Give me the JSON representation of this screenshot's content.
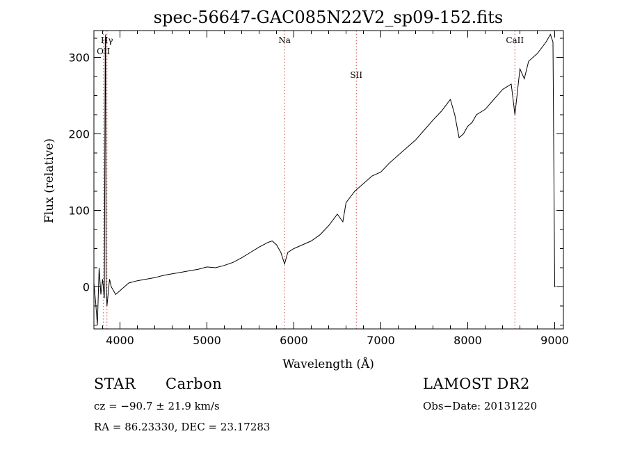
{
  "chart_data": {
    "type": "line",
    "title": "spec-56647-GAC085N22V2_sp09-152.fits",
    "xlabel": "Wavelength (Å)",
    "ylabel": "Flux (relative)",
    "xlim": [
      3700,
      9100
    ],
    "ylim": [
      -55,
      335
    ],
    "x_ticks": [
      4000,
      5000,
      6000,
      7000,
      8000,
      9000
    ],
    "y_ticks": [
      0,
      100,
      200,
      300
    ],
    "grid": false,
    "series": [
      {
        "x": [
          3700,
          3720,
          3740,
          3760,
          3780,
          3800,
          3820,
          3830,
          3835,
          3840,
          3850,
          3880,
          3900,
          3950,
          4000,
          4100,
          4200,
          4300,
          4400,
          4500,
          4600,
          4700,
          4800,
          4900,
          5000,
          5100,
          5200,
          5300,
          5400,
          5500,
          5600,
          5700,
          5750,
          5800,
          5850,
          5893,
          5930,
          6000,
          6100,
          6200,
          6300,
          6400,
          6500,
          6563,
          6600,
          6700,
          6800,
          6900,
          7000,
          7100,
          7200,
          7300,
          7400,
          7500,
          7600,
          7700,
          7800,
          7850,
          7900,
          7950,
          8000,
          8050,
          8100,
          8200,
          8300,
          8400,
          8500,
          8542,
          8600,
          8650,
          8700,
          8800,
          8900,
          8950,
          8980,
          9000,
          9010
        ],
        "y": [
          5,
          -20,
          -50,
          25,
          -10,
          10,
          -15,
          320,
          330,
          5,
          -25,
          10,
          0,
          -10,
          -5,
          5,
          8,
          10,
          12,
          15,
          17,
          19,
          21,
          23,
          26,
          25,
          28,
          32,
          38,
          45,
          52,
          58,
          60,
          55,
          45,
          30,
          45,
          50,
          55,
          60,
          68,
          80,
          95,
          85,
          110,
          125,
          135,
          145,
          150,
          162,
          172,
          182,
          192,
          205,
          218,
          230,
          245,
          225,
          195,
          200,
          210,
          215,
          225,
          232,
          245,
          258,
          265,
          225,
          285,
          272,
          295,
          305,
          320,
          330,
          320,
          0,
          0
        ]
      }
    ],
    "lines": [
      {
        "label": "Hγ",
        "x": 3850
      },
      {
        "label": "OII",
        "x": 3810
      },
      {
        "label": "Na",
        "x": 5893
      },
      {
        "label": "SII",
        "x": 6718
      },
      {
        "label": "CaII",
        "x": 8542
      }
    ]
  },
  "info": {
    "class_label": "STAR",
    "subclass_label": "Carbon",
    "survey_label": "LAMOST DR2",
    "cz_text": "cz = −90.7 ± 21.9 km/s",
    "obs_date_text": "Obs−Date: 20131220",
    "radec_text": "RA =  86.23330, DEC =  23.17283"
  }
}
